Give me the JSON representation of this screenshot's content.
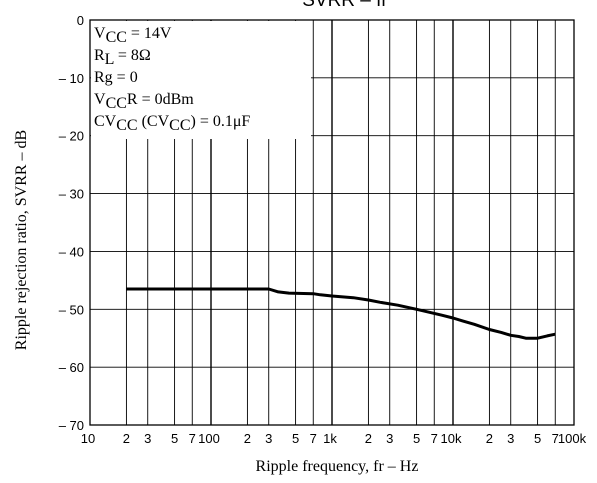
{
  "chart_data": {
    "type": "line",
    "title": "SVRR – fr",
    "xlabel": "Ripple frequency, fr – Hz",
    "ylabel": "Ripple rejection ratio, SVRR – dB",
    "x_scale": "log",
    "xlim": [
      10,
      100000
    ],
    "ylim": [
      -70,
      0
    ],
    "grid": true,
    "x_ticks": [
      {
        "value": 10,
        "label": "10",
        "major": true
      },
      {
        "value": 20,
        "label": "2",
        "major": false
      },
      {
        "value": 30,
        "label": "3",
        "major": false
      },
      {
        "value": 50,
        "label": "5",
        "major": false
      },
      {
        "value": 70,
        "label": "7",
        "major": false
      },
      {
        "value": 100,
        "label": "100",
        "major": true
      },
      {
        "value": 200,
        "label": "2",
        "major": false
      },
      {
        "value": 300,
        "label": "3",
        "major": false
      },
      {
        "value": 500,
        "label": "5",
        "major": false
      },
      {
        "value": 700,
        "label": "7",
        "major": false
      },
      {
        "value": 1000,
        "label": "1k",
        "major": true
      },
      {
        "value": 2000,
        "label": "2",
        "major": false
      },
      {
        "value": 3000,
        "label": "3",
        "major": false
      },
      {
        "value": 5000,
        "label": "5",
        "major": false
      },
      {
        "value": 7000,
        "label": "7",
        "major": false
      },
      {
        "value": 10000,
        "label": "10k",
        "major": true
      },
      {
        "value": 20000,
        "label": "2",
        "major": false
      },
      {
        "value": 30000,
        "label": "3",
        "major": false
      },
      {
        "value": 50000,
        "label": "5",
        "major": false
      },
      {
        "value": 70000,
        "label": "7",
        "major": false
      },
      {
        "value": 100000,
        "label": "100k",
        "major": true
      }
    ],
    "y_ticks": [
      {
        "value": 0,
        "label": "0"
      },
      {
        "value": -10,
        "label": "– 10"
      },
      {
        "value": -20,
        "label": "– 20"
      },
      {
        "value": -30,
        "label": "– 30"
      },
      {
        "value": -40,
        "label": "– 40"
      },
      {
        "value": -50,
        "label": "– 50"
      },
      {
        "value": -60,
        "label": "– 60"
      },
      {
        "value": -70,
        "label": "– 70"
      }
    ],
    "conditions": [
      {
        "base": "V",
        "sub": "CC",
        "rest": " = 14V"
      },
      {
        "base": "R",
        "sub": "L",
        "rest": " = 8Ω"
      },
      {
        "base": "Rg = 0",
        "sub": "",
        "rest": ""
      },
      {
        "base": "V",
        "sub": "CC",
        "rest": "R = 0dBm"
      },
      {
        "base": "CV",
        "sub": "CC",
        "rest": " (CV",
        "sub2": "CC",
        "rest2": ") = 0.1μF"
      }
    ],
    "series": [
      {
        "x": [
          20,
          100,
          300,
          360,
          440,
          700,
          800,
          1000,
          1500,
          2000,
          2500,
          3500,
          5000,
          8000,
          10000,
          12000,
          15000,
          20000,
          25000,
          30000,
          35000,
          40000,
          50000,
          60000,
          70000
        ],
        "y": [
          -46.5,
          -46.5,
          -46.5,
          -47,
          -47.2,
          -47.3,
          -47.5,
          -47.7,
          -48.0,
          -48.4,
          -48.8,
          -49.3,
          -50.0,
          -51.0,
          -51.5,
          -52.0,
          -52.6,
          -53.5,
          -54.0,
          -54.5,
          -54.7,
          -55.0,
          -55.0,
          -54.6,
          -54.3
        ]
      }
    ]
  }
}
